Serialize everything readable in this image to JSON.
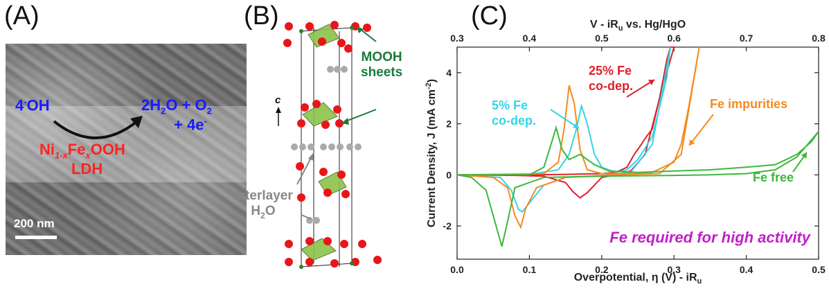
{
  "panels": {
    "a_label": "(A)",
    "b_label": "(B)",
    "c_label": "(C)"
  },
  "panel_a": {
    "reactant": "4",
    "reactant_sup": "-",
    "reactant_2": "OH",
    "product_line1": "2H",
    "product_sub": "2",
    "product_line1b": "O + O",
    "product_sub2": "2",
    "product_line2": "+ 4e",
    "product_line2_sup": "-",
    "catalyst_1": "Ni",
    "catalyst_sub1": "1-x",
    "catalyst_2": "Fe",
    "catalyst_sub2": "x",
    "catalyst_3": "OOH",
    "catalyst_line2": "LDH",
    "scale_bar": "200 nm",
    "colors": {
      "blue": "#1a1aff",
      "red": "#ff2222",
      "arrow": "#111111"
    }
  },
  "panel_b": {
    "axis_label": "c",
    "sheets_label_1": "MOOH",
    "sheets_label_2": "sheets",
    "water_label_1": "interlayer",
    "water_label_2": "H",
    "water_sub": "2",
    "water_label_3": "O",
    "colors": {
      "oxygen": "#e8161b",
      "metal": "#8bc34a",
      "water": "#aaaaaa",
      "label_green": "#1a7a3a",
      "label_gray": "#888888"
    }
  },
  "chart_data": {
    "type": "line",
    "xlabel": "Overpotential, η (V) - iR",
    "xlabel_sub": "u",
    "x2label": "V - iR",
    "x2label_sub": "u",
    "x2label_rest": " vs. Hg/HgO",
    "ylabel": "Current Density, J (mA cm",
    "ylabel_sup": "-2",
    "ylabel_end": ")",
    "xlim": [
      0.0,
      0.5
    ],
    "x2lim": [
      0.3,
      0.8
    ],
    "ylim": [
      -3.3,
      5.0
    ],
    "xticks": [
      "0.0",
      "0.1",
      "0.2",
      "0.3",
      "0.4",
      "0.5"
    ],
    "x2ticks": [
      "0.3",
      "0.4",
      "0.5",
      "0.6",
      "0.7",
      "0.8"
    ],
    "yticks": [
      "-2",
      "0",
      "2",
      "4"
    ],
    "annotation": "Fe required for high activity",
    "series": [
      {
        "name": "25% Fe co-dep.",
        "color": "#e0202a",
        "x": [
          0.0,
          0.1,
          0.15,
          0.2,
          0.22,
          0.235,
          0.245,
          0.255,
          0.262,
          0.27,
          0.28,
          0.29,
          0.295,
          0.298,
          0.3
        ],
        "y": [
          0.0,
          0.0,
          0.02,
          0.05,
          0.1,
          0.3,
          0.8,
          1.2,
          1.5,
          1.8,
          3.0,
          4.5,
          5.0,
          5.0,
          5.0
        ],
        "return_x": [
          0.3,
          0.28,
          0.26,
          0.24,
          0.22,
          0.2,
          0.18,
          0.17,
          0.16,
          0.15,
          0.12,
          0.08,
          0.0
        ],
        "return_y": [
          5.0,
          3.0,
          0.8,
          0.15,
          0.0,
          -0.1,
          -0.7,
          -0.9,
          -0.65,
          -0.3,
          -0.05,
          -0.02,
          0.0
        ]
      },
      {
        "name": "5% Fe co-dep.",
        "color": "#33d6e8",
        "x": [
          0.0,
          0.1,
          0.14,
          0.155,
          0.165,
          0.172,
          0.18,
          0.19,
          0.2,
          0.22,
          0.235,
          0.25,
          0.27,
          0.29,
          0.295
        ],
        "y": [
          0.0,
          0.02,
          0.2,
          0.8,
          1.8,
          2.7,
          2.0,
          0.8,
          0.3,
          0.1,
          0.2,
          0.6,
          1.5,
          3.8,
          5.0
        ],
        "return_x": [
          0.295,
          0.27,
          0.24,
          0.2,
          0.15,
          0.12,
          0.1,
          0.09,
          0.085,
          0.075,
          0.06,
          0.0
        ],
        "return_y": [
          5.0,
          1.2,
          0.1,
          -0.02,
          -0.1,
          -0.4,
          -1.1,
          -1.45,
          -1.35,
          -0.6,
          -0.1,
          0.0
        ]
      },
      {
        "name": "Fe impurities",
        "color": "#f58a1f",
        "x": [
          0.0,
          0.12,
          0.14,
          0.148,
          0.155,
          0.162,
          0.17,
          0.18,
          0.2,
          0.24,
          0.27,
          0.3,
          0.31,
          0.32,
          0.33,
          0.335
        ],
        "y": [
          0.0,
          0.05,
          0.5,
          1.8,
          3.5,
          2.8,
          1.0,
          0.2,
          0.05,
          0.05,
          0.1,
          0.5,
          1.2,
          2.6,
          4.2,
          5.0
        ],
        "return_x": [
          0.335,
          0.31,
          0.28,
          0.22,
          0.15,
          0.11,
          0.095,
          0.088,
          0.08,
          0.07,
          0.05,
          0.0
        ],
        "return_y": [
          5.0,
          0.8,
          0.05,
          0.0,
          -0.1,
          -0.5,
          -1.3,
          -2.05,
          -1.6,
          -0.5,
          -0.1,
          0.0
        ]
      },
      {
        "name": "Fe free",
        "color": "#3cb83c",
        "x": [
          0.0,
          0.1,
          0.12,
          0.13,
          0.137,
          0.145,
          0.155,
          0.17,
          0.19,
          0.21,
          0.25,
          0.3,
          0.35,
          0.4,
          0.44,
          0.47,
          0.49,
          0.5
        ],
        "y": [
          0.0,
          0.0,
          0.3,
          1.2,
          1.85,
          1.0,
          0.6,
          0.8,
          0.4,
          0.15,
          0.1,
          0.15,
          0.2,
          0.3,
          0.4,
          0.8,
          1.3,
          1.7
        ],
        "return_x": [
          0.5,
          0.47,
          0.44,
          0.4,
          0.35,
          0.3,
          0.2,
          0.12,
          0.08,
          0.07,
          0.062,
          0.055,
          0.04,
          0.02,
          0.0
        ],
        "return_y": [
          1.7,
          0.7,
          0.2,
          0.05,
          0.0,
          -0.02,
          -0.05,
          -0.1,
          -0.5,
          -1.8,
          -2.8,
          -2.1,
          -0.6,
          -0.1,
          0.0
        ]
      }
    ],
    "labels": [
      {
        "text1": "25% Fe",
        "text2": "co-dep.",
        "color": "#e0202a"
      },
      {
        "text1": "5% Fe",
        "text2": "co-dep.",
        "color": "#33d6e8"
      },
      {
        "text1": "Fe impurities",
        "text2": "",
        "color": "#f58a1f"
      },
      {
        "text1": "Fe free",
        "text2": "",
        "color": "#3cb83c"
      }
    ],
    "annotation_color": "#c020c8"
  }
}
